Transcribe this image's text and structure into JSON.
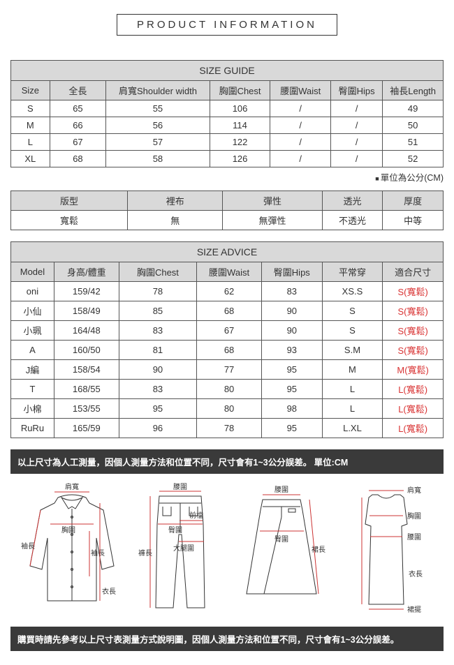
{
  "header": {
    "title": "PRODUCT INFORMATION"
  },
  "sizeGuide": {
    "title": "SIZE GUIDE",
    "columns": [
      "Size",
      "全長",
      "肩寬Shoulder width",
      "胸圍Chest",
      "腰圍Waist",
      "臀圍Hips",
      "袖長Length"
    ],
    "rows": [
      [
        "S",
        "65",
        "55",
        "106",
        "/",
        "/",
        "49"
      ],
      [
        "M",
        "66",
        "56",
        "114",
        "/",
        "/",
        "50"
      ],
      [
        "L",
        "67",
        "57",
        "122",
        "/",
        "/",
        "51"
      ],
      [
        "XL",
        "68",
        "58",
        "126",
        "/",
        "/",
        "52"
      ]
    ],
    "unitNote": "單位為公分(CM)"
  },
  "attributes": {
    "headers": [
      "版型",
      "裡布",
      "彈性",
      "透光",
      "厚度"
    ],
    "values": [
      "寬鬆",
      "無",
      "無彈性",
      "不透光",
      "中等"
    ]
  },
  "sizeAdvice": {
    "title": "SIZE ADVICE",
    "columns": [
      "Model",
      "身高/體重",
      "胸圍Chest",
      "腰圍Waist",
      "臀圍Hips",
      "平常穿",
      "適合尺寸"
    ],
    "rows": [
      {
        "cells": [
          "oni",
          "159/42",
          "78",
          "62",
          "83",
          "XS.S"
        ],
        "fit": "S(寬鬆)"
      },
      {
        "cells": [
          "小仙",
          "158/49",
          "85",
          "68",
          "90",
          "S"
        ],
        "fit": "S(寬鬆)"
      },
      {
        "cells": [
          "小珮",
          "164/48",
          "83",
          "67",
          "90",
          "S"
        ],
        "fit": "S(寬鬆)"
      },
      {
        "cells": [
          "A",
          "160/50",
          "81",
          "68",
          "93",
          "S.M"
        ],
        "fit": "S(寬鬆)"
      },
      {
        "cells": [
          "J編",
          "158/54",
          "90",
          "77",
          "95",
          "M"
        ],
        "fit": "M(寬鬆)"
      },
      {
        "cells": [
          "T",
          "168/55",
          "83",
          "80",
          "95",
          "L"
        ],
        "fit": "L(寬鬆)"
      },
      {
        "cells": [
          "小棉",
          "153/55",
          "95",
          "80",
          "98",
          "L"
        ],
        "fit": "L(寬鬆)"
      },
      {
        "cells": [
          "RuRu",
          "165/59",
          "96",
          "78",
          "95",
          "L.XL"
        ],
        "fit": "L(寬鬆)"
      }
    ]
  },
  "notes": {
    "top": "以上尺寸為人工測量，因個人測量方法和位置不同，尺寸會有1~3公分誤差。 單位:CM",
    "bottom": "購買時請先參考以上尺寸表測量方式說明圖，因個人測量方法和位置不同，尺寸會有1~3公分誤差。"
  },
  "diagramLabels": {
    "shoulder": "肩寬",
    "chest": "胸圍",
    "sleeve": "袖長",
    "length": "衣長",
    "waist": "腰圍",
    "hip": "臀圍",
    "inseam": "褲長",
    "frontRise": "前檔",
    "thigh": "大腿圍",
    "skirtLen": "裙長",
    "hem": "裙擺"
  }
}
